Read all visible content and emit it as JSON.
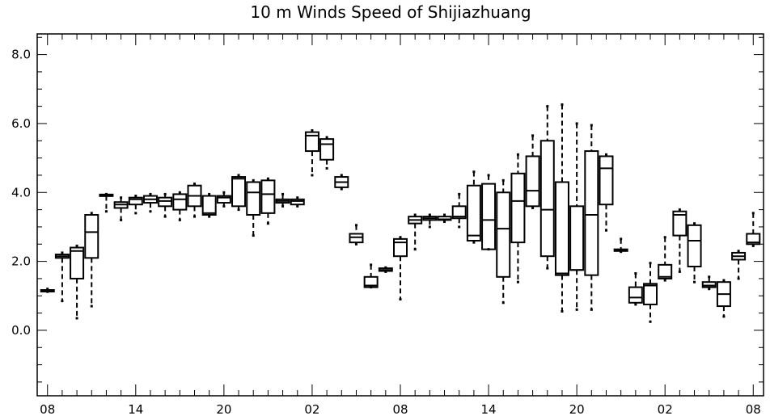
{
  "chart_data": {
    "type": "box",
    "title": "10 m Winds Speed of Shijiazhuang",
    "xlabel": "",
    "ylabel": "",
    "ylim": [
      -1.9,
      8.6
    ],
    "y_ticks": [
      0.0,
      2.0,
      4.0,
      6.0,
      8.0
    ],
    "y_tick_labels": [
      "0.0",
      "2.0",
      "4.0",
      "6.0",
      "8.0"
    ],
    "x_tick_labels": [
      "08",
      "14",
      "20",
      "02",
      "08",
      "14",
      "20",
      "02",
      "08"
    ],
    "x_tick_hours": [
      0,
      6,
      12,
      18,
      24,
      30,
      36,
      42,
      48
    ],
    "xlim": [
      -0.7,
      48.7
    ],
    "grid": false,
    "boxes": [
      {
        "hour": 0,
        "min": 1.12,
        "q1": 1.15,
        "median": 1.16,
        "q3": 1.17,
        "max": 1.2
      },
      {
        "hour": 1,
        "min": 0.85,
        "q1": 2.1,
        "median": 2.15,
        "q3": 2.2,
        "max": 2.25
      },
      {
        "hour": 2,
        "min": 0.35,
        "q1": 1.5,
        "median": 2.3,
        "q3": 2.4,
        "max": 2.45
      },
      {
        "hour": 3,
        "min": 0.7,
        "q1": 2.1,
        "median": 2.85,
        "q3": 3.35,
        "max": 3.4
      },
      {
        "hour": 4,
        "min": 3.45,
        "q1": 3.9,
        "median": 3.92,
        "q3": 3.94,
        "max": 3.95
      },
      {
        "hour": 5,
        "min": 3.2,
        "q1": 3.55,
        "median": 3.65,
        "q3": 3.72,
        "max": 3.85
      },
      {
        "hour": 6,
        "min": 3.4,
        "q1": 3.65,
        "median": 3.8,
        "q3": 3.85,
        "max": 3.9
      },
      {
        "hour": 7,
        "min": 3.45,
        "q1": 3.7,
        "median": 3.8,
        "q3": 3.9,
        "max": 3.95
      },
      {
        "hour": 8,
        "min": 3.3,
        "q1": 3.6,
        "median": 3.75,
        "q3": 3.85,
        "max": 3.95
      },
      {
        "hour": 9,
        "min": 3.2,
        "q1": 3.5,
        "median": 3.8,
        "q3": 3.95,
        "max": 4.0
      },
      {
        "hour": 10,
        "min": 3.3,
        "q1": 3.6,
        "median": 3.9,
        "q3": 4.2,
        "max": 4.25
      },
      {
        "hour": 11,
        "min": 3.3,
        "q1": 3.35,
        "median": 3.4,
        "q3": 3.9,
        "max": 3.95
      },
      {
        "hour": 12,
        "min": 3.6,
        "q1": 3.7,
        "median": 3.85,
        "q3": 3.9,
        "max": 4.0
      },
      {
        "hour": 13,
        "min": 3.5,
        "q1": 3.6,
        "median": 4.4,
        "q3": 4.45,
        "max": 4.5
      },
      {
        "hour": 14,
        "min": 2.75,
        "q1": 3.35,
        "median": 4.0,
        "q3": 4.3,
        "max": 4.35
      },
      {
        "hour": 15,
        "min": 3.1,
        "q1": 3.4,
        "median": 3.95,
        "q3": 4.35,
        "max": 4.4
      },
      {
        "hour": 16,
        "min": 3.6,
        "q1": 3.7,
        "median": 3.75,
        "q3": 3.8,
        "max": 3.95
      },
      {
        "hour": 17,
        "min": 3.6,
        "q1": 3.65,
        "median": 3.75,
        "q3": 3.8,
        "max": 3.85
      },
      {
        "hour": 18,
        "min": 4.5,
        "q1": 5.2,
        "median": 5.65,
        "q3": 5.75,
        "max": 5.8
      },
      {
        "hour": 19,
        "min": 4.7,
        "q1": 4.95,
        "median": 5.4,
        "q3": 5.55,
        "max": 5.6
      },
      {
        "hour": 20,
        "min": 4.1,
        "q1": 4.15,
        "median": 4.3,
        "q3": 4.45,
        "max": 4.5
      },
      {
        "hour": 21,
        "min": 2.5,
        "q1": 2.55,
        "median": 2.7,
        "q3": 2.8,
        "max": 3.05
      },
      {
        "hour": 22,
        "min": 1.25,
        "q1": 1.25,
        "median": 1.3,
        "q3": 1.55,
        "max": 1.9
      },
      {
        "hour": 23,
        "min": 1.7,
        "q1": 1.72,
        "median": 1.75,
        "q3": 1.8,
        "max": 1.82
      },
      {
        "hour": 24,
        "min": 0.9,
        "q1": 2.15,
        "median": 2.55,
        "q3": 2.65,
        "max": 2.7
      },
      {
        "hour": 25,
        "min": 2.35,
        "q1": 3.1,
        "median": 3.2,
        "q3": 3.3,
        "max": 3.35
      },
      {
        "hour": 26,
        "min": 3.0,
        "q1": 3.2,
        "median": 3.25,
        "q3": 3.3,
        "max": 3.35
      },
      {
        "hour": 27,
        "min": 3.15,
        "q1": 3.2,
        "median": 3.22,
        "q3": 3.3,
        "max": 3.35
      },
      {
        "hour": 28,
        "min": 3.0,
        "q1": 3.25,
        "median": 3.3,
        "q3": 3.6,
        "max": 3.95
      },
      {
        "hour": 29,
        "min": 2.55,
        "q1": 2.6,
        "median": 2.75,
        "q3": 4.2,
        "max": 4.6
      },
      {
        "hour": 30,
        "min": 2.35,
        "q1": 2.35,
        "median": 3.2,
        "q3": 4.25,
        "max": 4.5
      },
      {
        "hour": 31,
        "min": 0.8,
        "q1": 1.55,
        "median": 2.95,
        "q3": 4.0,
        "max": 4.35
      },
      {
        "hour": 32,
        "min": 1.4,
        "q1": 2.55,
        "median": 3.75,
        "q3": 4.55,
        "max": 5.1
      },
      {
        "hour": 33,
        "min": 3.55,
        "q1": 3.6,
        "median": 4.05,
        "q3": 5.05,
        "max": 5.65
      },
      {
        "hour": 34,
        "min": 1.8,
        "q1": 2.15,
        "median": 3.5,
        "q3": 5.5,
        "max": 6.5
      },
      {
        "hour": 35,
        "min": 0.55,
        "q1": 1.6,
        "median": 1.65,
        "q3": 4.3,
        "max": 6.55
      },
      {
        "hour": 36,
        "min": 0.6,
        "q1": 1.75,
        "median": 1.75,
        "q3": 3.6,
        "max": 6.0
      },
      {
        "hour": 37,
        "min": 0.6,
        "q1": 1.6,
        "median": 3.35,
        "q3": 5.2,
        "max": 5.95
      },
      {
        "hour": 38,
        "min": 2.9,
        "q1": 3.65,
        "median": 4.7,
        "q3": 5.05,
        "max": 5.1
      },
      {
        "hour": 39,
        "min": 2.28,
        "q1": 2.3,
        "median": 2.32,
        "q3": 2.35,
        "max": 2.65
      },
      {
        "hour": 40,
        "min": 0.75,
        "q1": 0.8,
        "median": 0.95,
        "q3": 1.25,
        "max": 1.65
      },
      {
        "hour": 41,
        "min": 0.25,
        "q1": 0.75,
        "median": 1.3,
        "q3": 1.35,
        "max": 1.95
      },
      {
        "hour": 42,
        "min": 1.45,
        "q1": 1.5,
        "median": 1.55,
        "q3": 1.9,
        "max": 2.7
      },
      {
        "hour": 43,
        "min": 1.7,
        "q1": 2.75,
        "median": 3.35,
        "q3": 3.45,
        "max": 3.5
      },
      {
        "hour": 44,
        "min": 1.4,
        "q1": 1.85,
        "median": 2.6,
        "q3": 3.05,
        "max": 3.1
      },
      {
        "hour": 45,
        "min": 1.2,
        "q1": 1.25,
        "median": 1.3,
        "q3": 1.4,
        "max": 1.55
      },
      {
        "hour": 46,
        "min": 0.4,
        "q1": 0.7,
        "median": 1.05,
        "q3": 1.4,
        "max": 1.45
      },
      {
        "hour": 47,
        "min": 1.5,
        "q1": 2.05,
        "median": 2.15,
        "q3": 2.25,
        "max": 2.3
      },
      {
        "hour": 48,
        "min": 2.45,
        "q1": 2.5,
        "median": 2.55,
        "q3": 2.8,
        "max": 3.4
      }
    ]
  }
}
